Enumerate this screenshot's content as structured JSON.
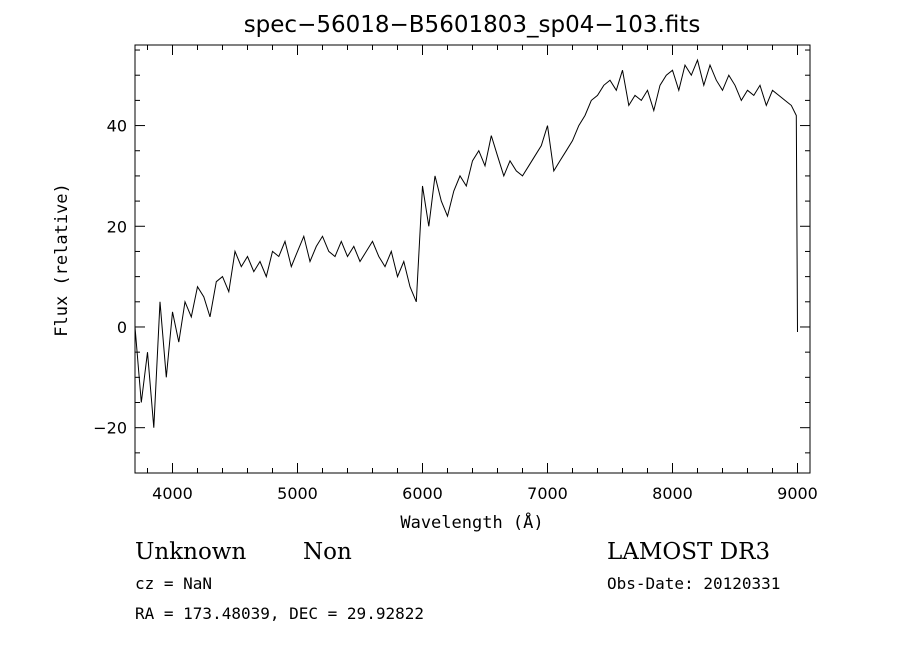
{
  "chart_data": {
    "type": "line",
    "title": "spec−56018−B5601803_sp04−103.fits",
    "xlabel": "Wavelength (Å)",
    "ylabel": "Flux (relative)",
    "xlim": [
      3700,
      9100
    ],
    "ylim": [
      -29,
      56
    ],
    "x_ticks": [
      4000,
      5000,
      6000,
      7000,
      8000,
      9000
    ],
    "x_tick_labels": [
      "4000",
      "5000",
      "6000",
      "7000",
      "8000",
      "9000"
    ],
    "y_ticks": [
      -20,
      0,
      20,
      40
    ],
    "y_tick_labels": [
      "−20",
      "0",
      "20",
      "40"
    ],
    "grid": false,
    "legend": "none",
    "line_color": "#000000",
    "series": [
      {
        "x": [
          3700,
          3750,
          3800,
          3850,
          3900,
          3950,
          4000,
          4050,
          4100,
          4150,
          4200,
          4250,
          4300,
          4350,
          4400,
          4450,
          4500,
          4550,
          4600,
          4650,
          4700,
          4750,
          4800,
          4850,
          4900,
          4950,
          5000,
          5050,
          5100,
          5150,
          5200,
          5250,
          5300,
          5350,
          5400,
          5450,
          5500,
          5550,
          5600,
          5650,
          5700,
          5750,
          5800,
          5850,
          5900,
          5950,
          6000,
          6050,
          6100,
          6150,
          6200,
          6250,
          6300,
          6350,
          6400,
          6450,
          6500,
          6550,
          6600,
          6650,
          6700,
          6750,
          6800,
          6850,
          6900,
          6950,
          7000,
          7050,
          7100,
          7150,
          7200,
          7250,
          7300,
          7350,
          7400,
          7450,
          7500,
          7550,
          7600,
          7650,
          7700,
          7750,
          7800,
          7850,
          7900,
          7950,
          8000,
          8050,
          8100,
          8150,
          8200,
          8250,
          8300,
          8350,
          8400,
          8450,
          8500,
          8550,
          8600,
          8650,
          8700,
          8750,
          8800,
          8850,
          8900,
          8950,
          8990,
          9000
        ],
        "y": [
          0,
          -15,
          -5,
          -20,
          5,
          -10,
          3,
          -3,
          5,
          2,
          8,
          6,
          2,
          9,
          10,
          7,
          15,
          12,
          14,
          11,
          13,
          10,
          15,
          14,
          17,
          12,
          15,
          18,
          13,
          16,
          18,
          15,
          14,
          17,
          14,
          16,
          13,
          15,
          17,
          14,
          12,
          15,
          10,
          13,
          8,
          5,
          28,
          20,
          30,
          25,
          22,
          27,
          30,
          28,
          33,
          35,
          32,
          38,
          34,
          30,
          33,
          31,
          30,
          32,
          34,
          36,
          40,
          31,
          33,
          35,
          37,
          40,
          42,
          45,
          46,
          48,
          49,
          47,
          51,
          44,
          46,
          45,
          47,
          43,
          48,
          50,
          51,
          47,
          52,
          50,
          53,
          48,
          52,
          49,
          47,
          50,
          48,
          45,
          47,
          46,
          48,
          44,
          47,
          46,
          45,
          44,
          42,
          -1
        ]
      }
    ]
  },
  "annotations": {
    "object_class": "Unknown",
    "subclass": "Non",
    "survey": "LAMOST DR3",
    "redshift": "cz = NaN",
    "obs_date": "Obs-Date: 20120331",
    "coords": "RA = 173.48039, DEC =  29.92822"
  }
}
